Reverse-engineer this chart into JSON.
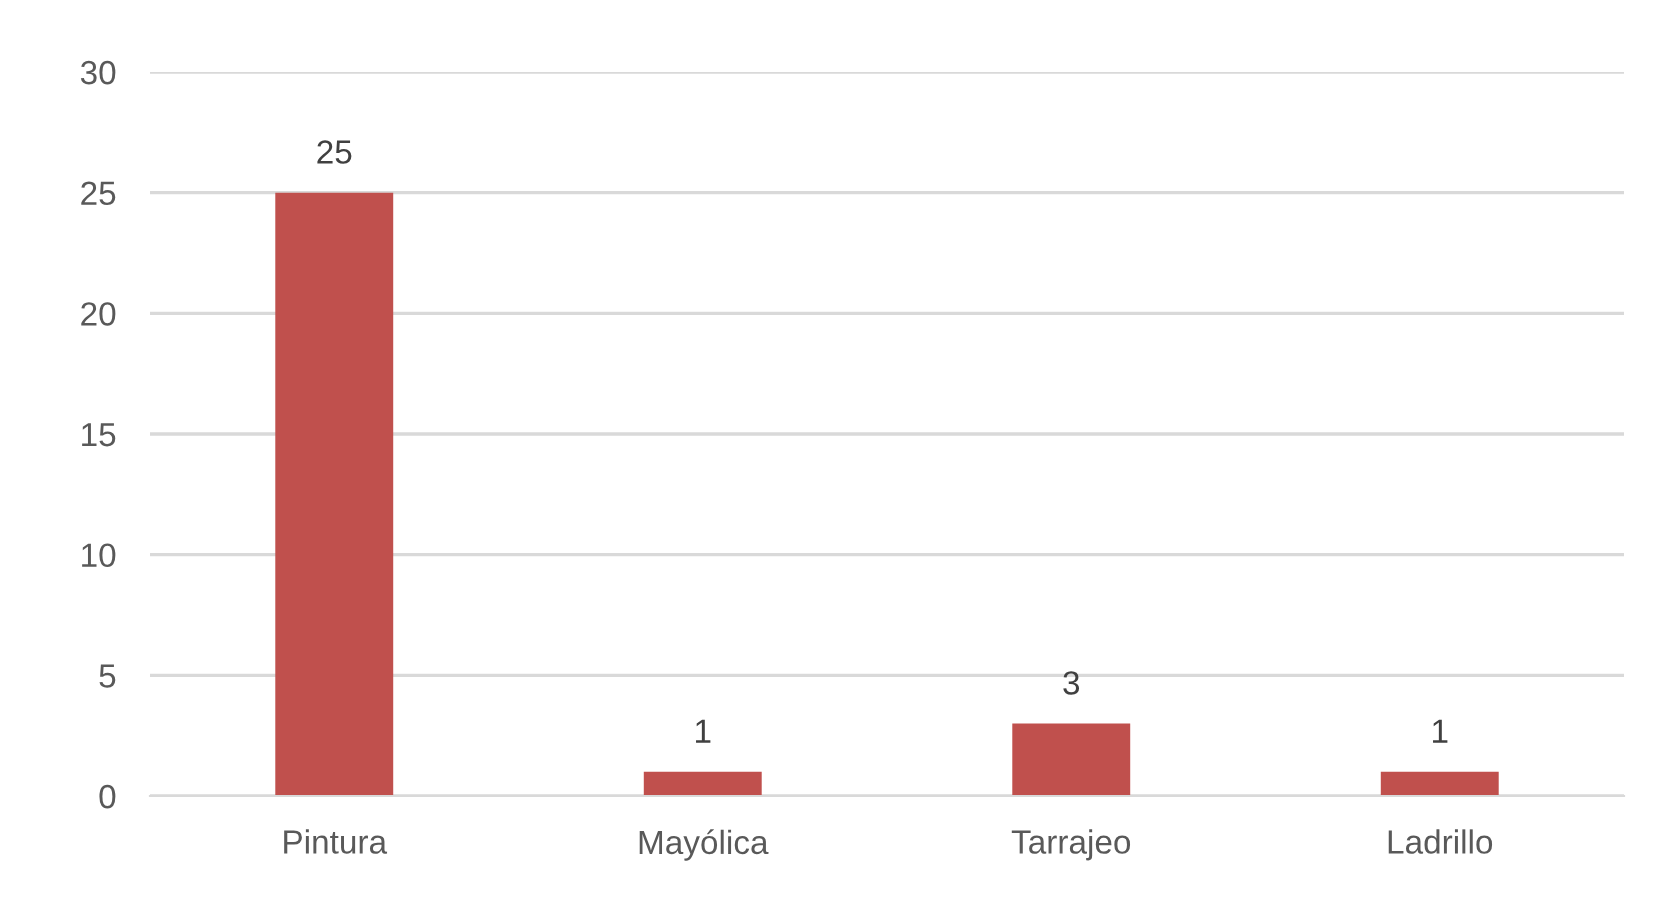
{
  "chart_data": {
    "type": "bar",
    "categories": [
      "Pintura",
      "Mayólica",
      "Tarrajeo",
      "Ladrillo"
    ],
    "values": [
      25,
      1,
      3,
      1
    ],
    "color": "#c0504d",
    "ylim": [
      0,
      30
    ],
    "yticks": [
      0,
      5,
      10,
      15,
      20,
      25,
      30
    ],
    "grid": "y",
    "data_labels": true
  }
}
